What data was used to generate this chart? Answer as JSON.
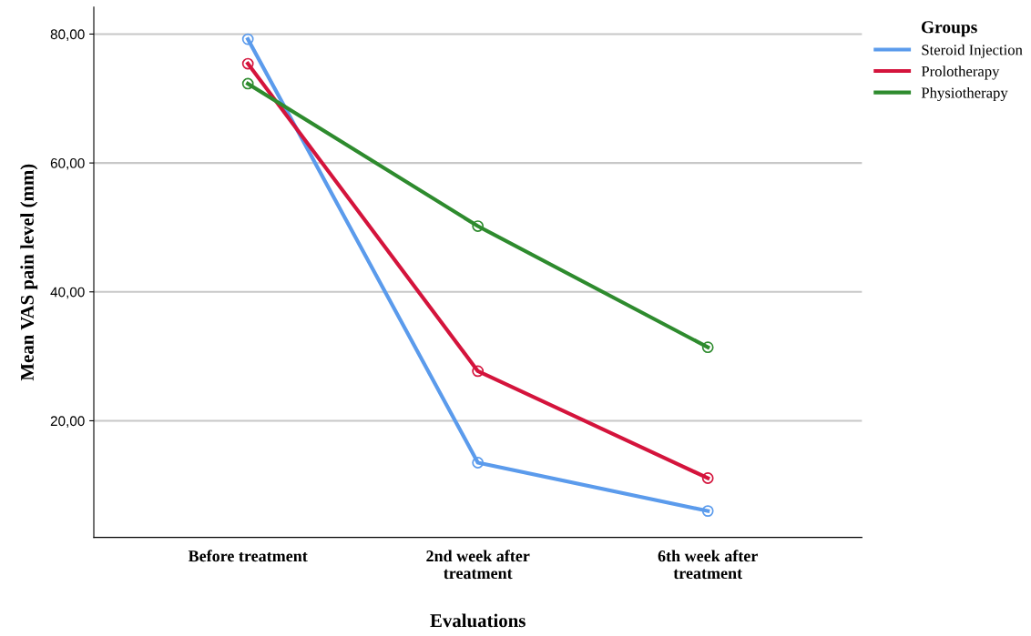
{
  "chart_data": {
    "type": "line",
    "xlabel": "Evaluations",
    "ylabel": "Mean VAS pain level (mm)",
    "legend_title": "Groups",
    "categories": [
      "Before treatment",
      "2nd week after\ntreatment",
      "6th week after\ntreatment"
    ],
    "series": [
      {
        "name": "Steroid Injection",
        "color": "#5b9bec",
        "values": [
          79.2,
          13.5,
          6.0
        ]
      },
      {
        "name": "Prolotherapy",
        "color": "#d4143c",
        "values": [
          75.4,
          27.7,
          11.1
        ]
      },
      {
        "name": "Physiotherapy",
        "color": "#2e8b2e",
        "values": [
          72.3,
          50.2,
          31.4
        ]
      }
    ],
    "ylim": [
      1.9,
      84.2
    ],
    "yticks": [
      {
        "value": 20,
        "label": "20,00"
      },
      {
        "value": 40,
        "label": "40,00"
      },
      {
        "value": 60,
        "label": "60,00"
      },
      {
        "value": 80,
        "label": "80,00"
      }
    ],
    "grid": "y",
    "legend": "top right",
    "marker": "circle",
    "line_style": "solid"
  }
}
